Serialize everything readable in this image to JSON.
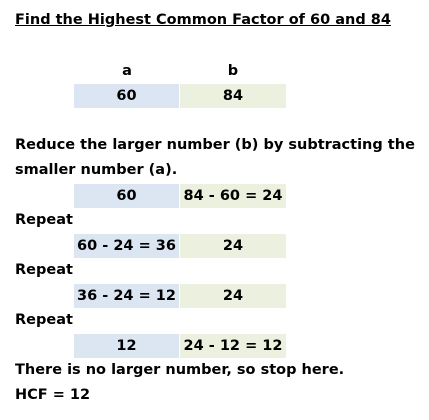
{
  "title": "Find the Highest Common Factor of 60 and 84",
  "headers": {
    "a": "a",
    "b": "b"
  },
  "rows": [
    {
      "a": "60",
      "b": "84"
    },
    {
      "a": "60",
      "b": "84 - 60 = 24"
    },
    {
      "a": "60 - 24 = 36",
      "b": "24"
    },
    {
      "a": "36 - 24 = 12",
      "b": "24"
    },
    {
      "a": "12",
      "b": "24 - 12 = 12"
    }
  ],
  "instruction": {
    "line1": "Reduce the larger number (b) by subtracting the",
    "line2": "smaller number (a)."
  },
  "repeat_labels": [
    "Repeat",
    "Repeat",
    "Repeat"
  ],
  "conclusion": "There is no larger number, so stop here.",
  "result": "HCF = 12",
  "colors": {
    "column_a_fill": "#dce6f2",
    "column_b_fill": "#ebf1de"
  }
}
